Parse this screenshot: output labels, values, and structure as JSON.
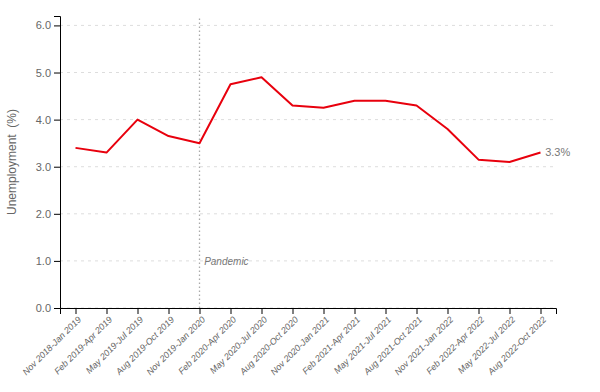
{
  "chart_data": {
    "type": "line",
    "categories": [
      "Nov 2018-Jan 2019",
      "Feb 2019-Apr 2019",
      "May 2019-Jul 2019",
      "Aug 2019-Oct 2019",
      "Nov 2019-Jan 2020",
      "Feb 2020-Apr 2020",
      "May 2020-Jul 2020",
      "Aug 2020-Oct 2020",
      "Nov 2020-Jan 2021",
      "Feb 2021-Apr 2021",
      "May 2021-Jul 2021",
      "Aug 2021-Oct 2021",
      "Nov 2021-Jan 2022",
      "Feb 2022-Apr 2022",
      "May 2022-Jul 2022",
      "Aug 2022-Oct 2022"
    ],
    "values": [
      3.4,
      3.3,
      4.0,
      3.65,
      3.5,
      4.75,
      4.9,
      4.3,
      4.25,
      4.4,
      4.4,
      4.3,
      3.8,
      3.15,
      3.1,
      3.3
    ],
    "color": "#e8000d",
    "ylabel": "Unemployment  (%)",
    "ylim": [
      0.0,
      6.2
    ],
    "yticks": [
      {
        "value": 0,
        "label": "0.0"
      },
      {
        "value": 1,
        "label": "1.0"
      },
      {
        "value": 2,
        "label": "2.0"
      },
      {
        "value": 3,
        "label": "3.0"
      },
      {
        "value": 4,
        "label": "4.0"
      },
      {
        "value": 5,
        "label": "5.0"
      },
      {
        "value": 6,
        "label": "6.0"
      }
    ],
    "grid": true,
    "annotations": [
      {
        "text": "Pandemic",
        "x": "Nov 2019-Jan 2020",
        "y": 0.85,
        "line_style": "dotted"
      },
      {
        "text": "3.3%",
        "x": "Aug 2022-Oct 2022",
        "y": 3.3
      }
    ]
  }
}
